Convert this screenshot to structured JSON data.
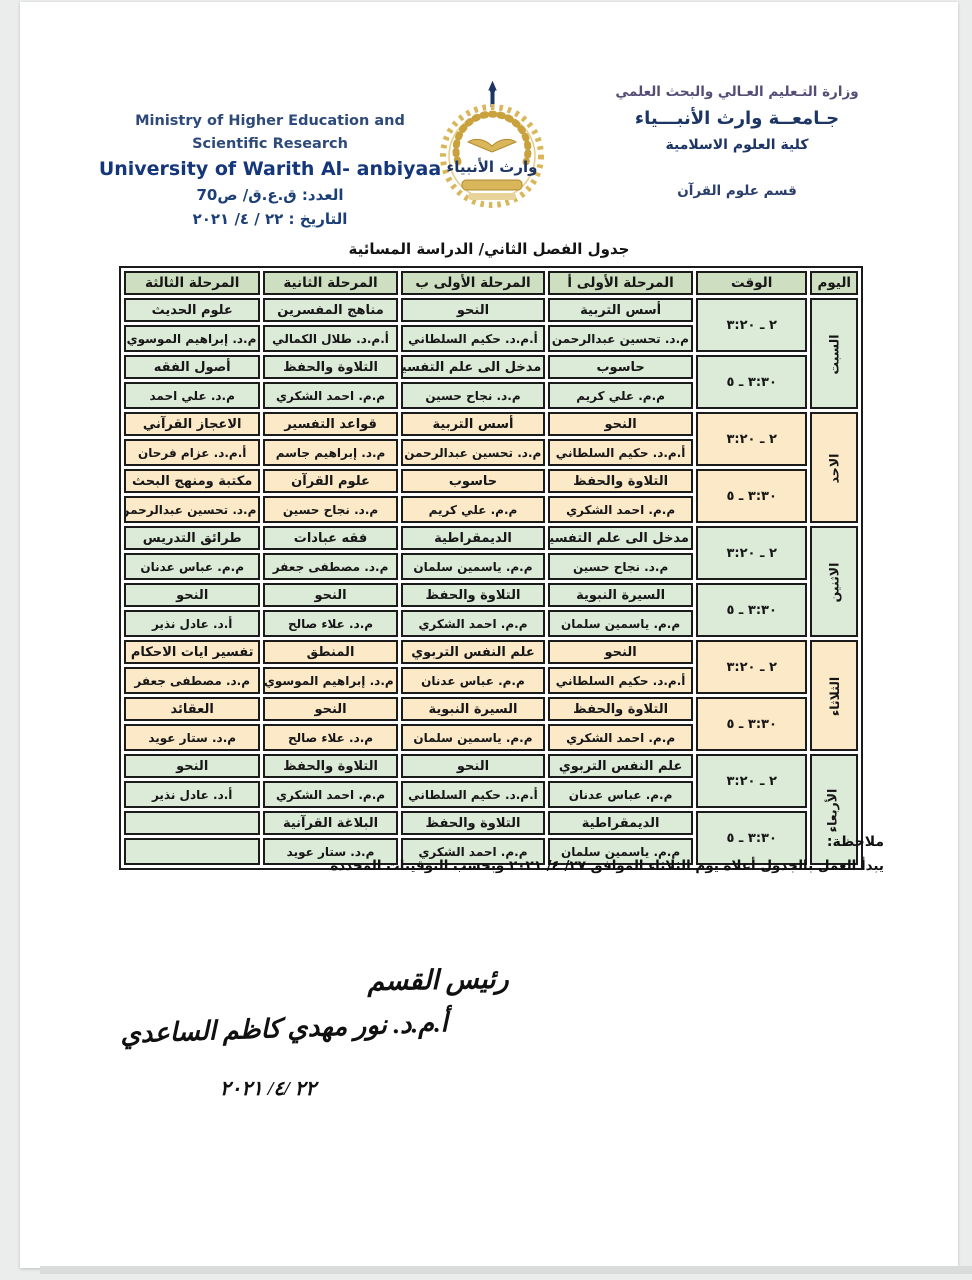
{
  "header": {
    "ministry_ar": "وزارة التـعليم العـالي والبحث العلمي",
    "university_ar": "جـامعــة وارث الأنبـــياء",
    "college_ar": "كلية العلوم الاسلامية",
    "department_ar": "قسم علوم القرآن",
    "ministry_en_line1": "Ministry of Higher Education and",
    "ministry_en_line2": "Scientific Research",
    "university_en": "University of Warith Al- anbiyaa",
    "doc_number": "العدد: ق.ع.ق/ ص70",
    "doc_date": "التاريخ : ٢٢ / ٤/ ٢٠٢١"
  },
  "logo": {
    "text": "وارث الأنبياء"
  },
  "colors": {
    "header_cell": "#cddfc0",
    "green_block": "#dcead8",
    "cream_block": "#fbe9c8",
    "border": "#1b1b1b",
    "brand_blue": "#1d3564",
    "logo_gold": "#c9a23e"
  },
  "schedule": {
    "title": "جدول الفصل الثاني/ الدراسة المسائية",
    "columns": [
      "اليوم",
      "الوقت",
      "المرحلة الأولى أ",
      "المرحلة الأولى ب",
      "المرحلة الثانية",
      "المرحلة الثالثة"
    ],
    "days": [
      {
        "name": "السبت",
        "theme": "green",
        "slots": [
          {
            "time": "٢ ـ ٣:٢٠",
            "classes": [
              {
                "subject": "أسس التربية",
                "teacher": "م.د. تحسين عبدالرحمن"
              },
              {
                "subject": "النحو",
                "teacher": "أ.م.د. حكيم السلطاني"
              },
              {
                "subject": "مناهج المفسرين",
                "teacher": "أ.م.د. طلال الكمالي"
              },
              {
                "subject": "علوم الحديث",
                "teacher": "م.د. إبراهيم الموسوي"
              }
            ]
          },
          {
            "time": "٣:٣٠ ـ ٥",
            "classes": [
              {
                "subject": "حاسوب",
                "teacher": "م.م. علي كريم"
              },
              {
                "subject": "مدخل الى علم التفسير",
                "teacher": "م.د. نجاح حسين"
              },
              {
                "subject": "التلاوة والحفظ",
                "teacher": "م.م. احمد الشكري"
              },
              {
                "subject": "أصول الفقه",
                "teacher": "م.د. علي احمد"
              }
            ]
          }
        ]
      },
      {
        "name": "الاحد",
        "theme": "cream",
        "slots": [
          {
            "time": "٢ ـ ٣:٢٠",
            "classes": [
              {
                "subject": "النحو",
                "teacher": "أ.م.د. حكيم السلطاني"
              },
              {
                "subject": "أسس التربية",
                "teacher": "م.د. تحسين عبدالرحمن"
              },
              {
                "subject": "قواعد التفسير",
                "teacher": "م.د. إبراهيم جاسم"
              },
              {
                "subject": "الاعجاز القرآني",
                "teacher": "أ.م.د. عزام فرحان"
              }
            ]
          },
          {
            "time": "٣:٣٠ ـ ٥",
            "classes": [
              {
                "subject": "التلاوة والحفظ",
                "teacher": "م.م. احمد الشكري"
              },
              {
                "subject": "حاسوب",
                "teacher": "م.م. علي كريم"
              },
              {
                "subject": "علوم القرآن",
                "teacher": "م.د. نجاح حسين"
              },
              {
                "subject": "مكتبة ومنهج البحث",
                "teacher": "م.د. تحسين عبدالرحمن"
              }
            ]
          }
        ]
      },
      {
        "name": "الاثنين",
        "theme": "green",
        "slots": [
          {
            "time": "٢ ـ ٣:٢٠",
            "classes": [
              {
                "subject": "مدخل الى علم التفسير",
                "teacher": "م.د. نجاح حسين"
              },
              {
                "subject": "الديمقراطية",
                "teacher": "م.م. ياسمين سلمان"
              },
              {
                "subject": "فقه عبادات",
                "teacher": "م.د. مصطفى جعفر"
              },
              {
                "subject": "طرائق التدريس",
                "teacher": "م.م. عباس عدنان"
              }
            ]
          },
          {
            "time": "٣:٣٠ ـ ٥",
            "classes": [
              {
                "subject": "السيرة النبوية",
                "teacher": "م.م. ياسمين سلمان"
              },
              {
                "subject": "التلاوة والحفظ",
                "teacher": "م.م. احمد الشكري"
              },
              {
                "subject": "النحو",
                "teacher": "م.د. علاء صالح"
              },
              {
                "subject": "النحو",
                "teacher": "أ.د. عادل نذير"
              }
            ]
          }
        ]
      },
      {
        "name": "الثلاثاء",
        "theme": "cream",
        "slots": [
          {
            "time": "٢ ـ ٣:٢٠",
            "classes": [
              {
                "subject": "النحو",
                "teacher": "أ.م.د. حكيم السلطاني"
              },
              {
                "subject": "علم النفس التربوي",
                "teacher": "م.م. عباس عدنان"
              },
              {
                "subject": "المنطق",
                "teacher": "م.د. إبراهيم الموسوي"
              },
              {
                "subject": "تفسير ايات الاحكام",
                "teacher": "م.د. مصطفى جعفر"
              }
            ]
          },
          {
            "time": "٣:٣٠ ـ ٥",
            "classes": [
              {
                "subject": "التلاوة والحفظ",
                "teacher": "م.م. احمد الشكري"
              },
              {
                "subject": "السيرة النبوية",
                "teacher": "م.م. ياسمين سلمان"
              },
              {
                "subject": "النحو",
                "teacher": "م.د. علاء صالح"
              },
              {
                "subject": "العقائد",
                "teacher": "م.د. ستار عويد"
              }
            ]
          }
        ]
      },
      {
        "name": "الأربعاء",
        "theme": "green",
        "slots": [
          {
            "time": "٢ ـ ٣:٢٠",
            "classes": [
              {
                "subject": "علم النفس التربوي",
                "teacher": "م.م. عباس عدنان"
              },
              {
                "subject": "النحو",
                "teacher": "أ.م.د. حكيم السلطاني"
              },
              {
                "subject": "التلاوة والحفظ",
                "teacher": "م.م. احمد الشكري"
              },
              {
                "subject": "النحو",
                "teacher": "أ.د. عادل نذير"
              }
            ]
          },
          {
            "time": "٣:٣٠ ـ ٥",
            "classes": [
              {
                "subject": "الديمقراطية",
                "teacher": "م.م. ياسمين سلمان"
              },
              {
                "subject": "التلاوة والحفظ",
                "teacher": "م.م. احمد الشكري"
              },
              {
                "subject": "البلاغة القرآنية",
                "teacher": "م.د. ستار عويد"
              },
              {
                "subject": "",
                "teacher": ""
              }
            ]
          }
        ]
      }
    ]
  },
  "note": {
    "label": "ملاحظة:",
    "body": "يبدأ العمل بالجدول أعلاه يوم الثلاثاء الموافق ٢٧/ ٤/ ٢٠٢١ وبحسب التوقيتات المحددة"
  },
  "signature": {
    "title": "رئيس القسم",
    "name": "أ.م.د. نور مهدي كاظم الساعدي",
    "date": "٢٢ /٤/ ٢٠٢١"
  }
}
